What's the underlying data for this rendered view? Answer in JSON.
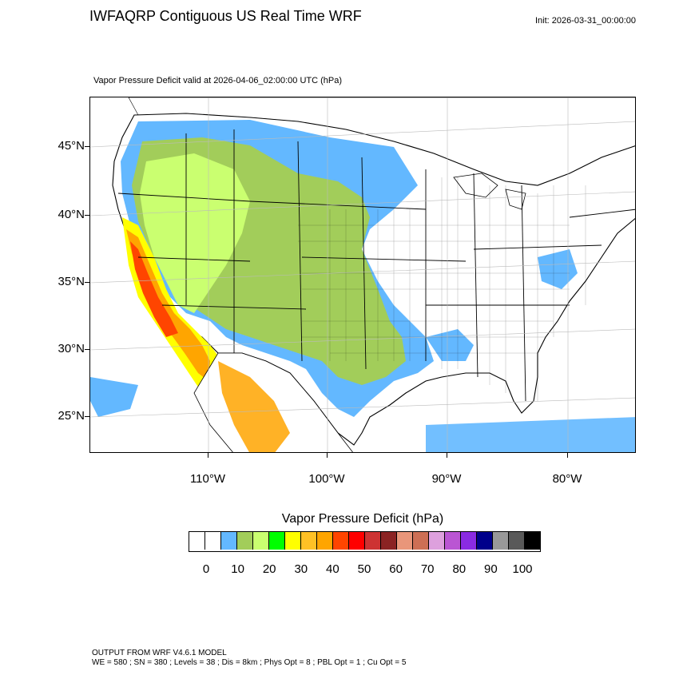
{
  "header": {
    "title": "IWFAQRP Contiguous US Real Time WRF",
    "init": "Init: 2026-03-31_00:00:00",
    "subtitle": "Vapor Pressure Deficit valid at 2026-04-06_02:00:00 UTC   (hPa)"
  },
  "map": {
    "lat_labels": [
      "45°N",
      "40°N",
      "35°N",
      "30°N",
      "25°N"
    ],
    "lon_labels": [
      "110°W",
      "100°W",
      "90°W",
      "80°W"
    ],
    "field_colors": {
      "ocean": "#ffffff",
      "low": "#6fb6ff",
      "olive": "#9bc959",
      "lightgreen": "#c8f078",
      "green": "#21f021",
      "yellow": "#fff23a",
      "orange": "#f5a623",
      "red": "#ff4a1a"
    }
  },
  "colorbar": {
    "title": "Vapor Pressure Deficit  (hPa)",
    "colors": [
      "#ffffff",
      "#ffffff",
      "#63b8ff",
      "#a2cd5a",
      "#caff70",
      "#00ff00",
      "#ffff00",
      "#ffc125",
      "#ffa500",
      "#ff4500",
      "#ff0000",
      "#cd3333",
      "#8b2323",
      "#e9967a",
      "#cd6f55",
      "#dda0dd",
      "#ba55d3",
      "#8a2be2",
      "#00008b",
      "#999999",
      "#595959",
      "#000000"
    ],
    "tick_labels": [
      "0",
      "10",
      "20",
      "30",
      "40",
      "50",
      "60",
      "70",
      "80",
      "90",
      "100"
    ]
  },
  "footer": {
    "line1": "OUTPUT FROM WRF V4.6.1 MODEL",
    "line2": "WE = 580 ; SN = 380 ; Levels = 38 ; Dis = 8km ; Phys Opt = 8 ; PBL Opt = 1 ; Cu Opt = 5"
  }
}
